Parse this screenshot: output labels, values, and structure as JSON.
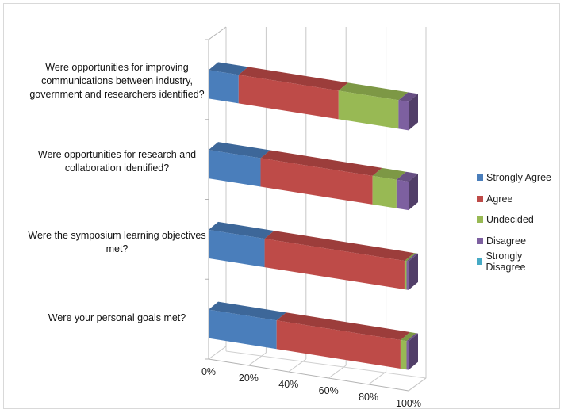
{
  "chart_data": {
    "type": "bar",
    "orientation": "horizontal",
    "stacked": "100%",
    "style": "3d",
    "categories": [
      "Were opportunities for improving communications between industry, government and researchers identified?",
      "Were opportunities for research and collaboration identified?",
      "Were the symposium learning objectives met?",
      "Were your personal goals met?"
    ],
    "category_lines": [
      [
        "Were opportunities for improving",
        "communications between industry,",
        "government and researchers identified?"
      ],
      [
        "Were opportunities for research and",
        "collaboration identified?"
      ],
      [
        "Were the symposium learning objectives",
        "met?"
      ],
      [
        "Were your personal goals met?"
      ]
    ],
    "series": [
      {
        "name": "Strongly Agree",
        "color": "#4a7ebb",
        "values": [
          15,
          26,
          28,
          34
        ]
      },
      {
        "name": "Agree",
        "color": "#be4b48",
        "values": [
          50,
          56,
          70,
          62
        ]
      },
      {
        "name": "Undecided",
        "color": "#98b954",
        "values": [
          30,
          12,
          1,
          3
        ]
      },
      {
        "name": "Disagree",
        "color": "#7d60a0",
        "values": [
          5,
          6,
          1,
          1
        ]
      },
      {
        "name": "Strongly Disagree",
        "color": "#46aac5",
        "values": [
          0,
          0,
          0,
          0
        ]
      }
    ],
    "x_ticks": [
      "0%",
      "20%",
      "40%",
      "60%",
      "80%",
      "100%"
    ],
    "xlim": [
      0,
      100
    ],
    "grid": true,
    "legend_position": "right"
  }
}
